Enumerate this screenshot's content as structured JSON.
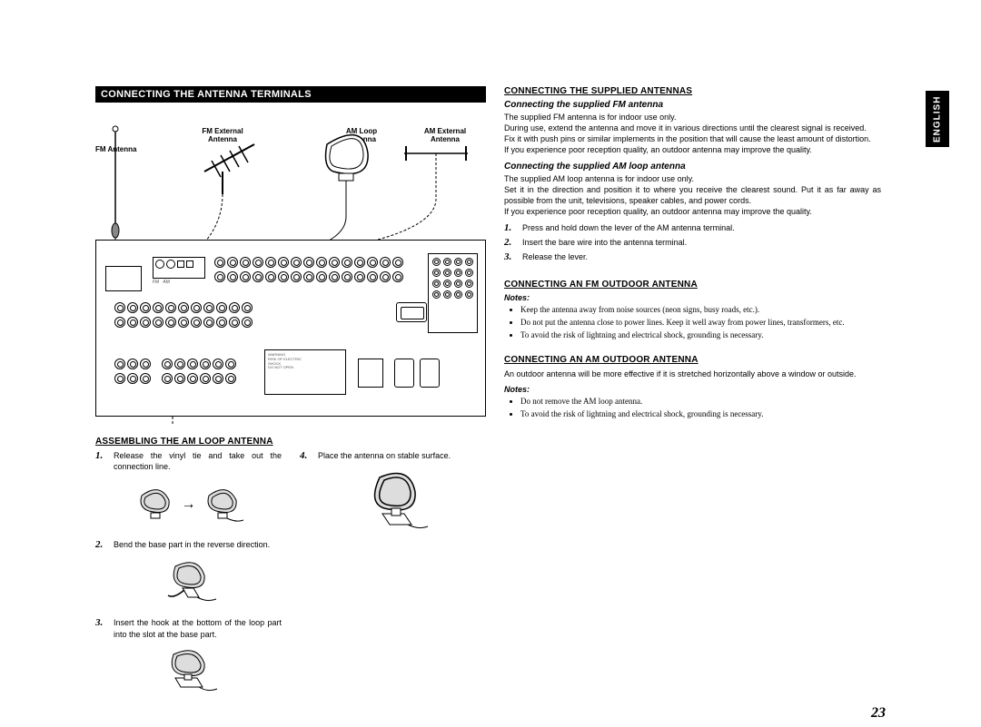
{
  "title_bar": "CONNECTING THE ANTENNA TERMINALS",
  "lang_tab": "ENGLISH",
  "page_num": "23",
  "diagram_labels": {
    "fm_antenna": "FM Antenna",
    "fm_external": "FM External\nAntenna",
    "am_loop": "AM Loop\nAntenna",
    "am_external": "AM External\nAntenna"
  },
  "left": {
    "assem_heading": "ASSEMBLING THE AM LOOP ANTENNA",
    "step1_n": "1.",
    "step1_t": "Release the vinyl tie and take out the connection line.",
    "step2_n": "2.",
    "step2_t": "Bend the base part in the reverse direction.",
    "step3_n": "3.",
    "step3_t": "Insert the hook at the bottom of the loop part into the slot at the base part.",
    "step4_n": "4.",
    "step4_t": "Place the antenna on stable surface."
  },
  "right": {
    "h1": "CONNECTING THE SUPPLIED ANTENNAS",
    "fm_sub": "Connecting the supplied FM antenna",
    "fm_p1": "The supplied FM antenna is for indoor use only.",
    "fm_p2": "During use, extend the antenna and move it in various directions until the clearest signal is received.",
    "fm_p3": "Fix it with push pins or similar implements in the position that will cause the least amount of distortion.",
    "fm_p4": "If you experience poor reception quality, an outdoor antenna may improve the quality.",
    "am_sub": "Connecting the supplied AM loop antenna",
    "am_p1": "The supplied AM loop antenna is for indoor use only.",
    "am_p2": "Set it in the direction and position it to where you receive the clearest sound. Put it as far away as possible from the unit, televisions, speaker cables, and power cords.",
    "am_p3": "If you experience poor reception quality, an outdoor antenna may improve the quality.",
    "am_s1_n": "1.",
    "am_s1_t": "Press and hold down the lever of the AM antenna terminal.",
    "am_s2_n": "2.",
    "am_s2_t": "Insert the bare wire into the antenna terminal.",
    "am_s3_n": "3.",
    "am_s3_t": "Release the lever.",
    "h2": "CONNECTING AN FM OUTDOOR ANTENNA",
    "notes1_label": "Notes:",
    "notes1": [
      "Keep the antenna away from noise sources (neon signs, busy roads, etc.).",
      "Do not put the antenna close to power lines. Keep it well away from power lines, transformers, etc.",
      "To avoid the risk of lightning and electrical shock, grounding is necessary."
    ],
    "h3": "CONNECTING AN AM OUTDOOR ANTENNA",
    "am_out_p": "An outdoor antenna will be more effective if it is stretched horizontally above a window or outside.",
    "notes2_label": "Notes:",
    "notes2": [
      "Do not remove the AM loop antenna.",
      "To avoid the risk of lightning and electrical shock, grounding is necessary."
    ]
  }
}
